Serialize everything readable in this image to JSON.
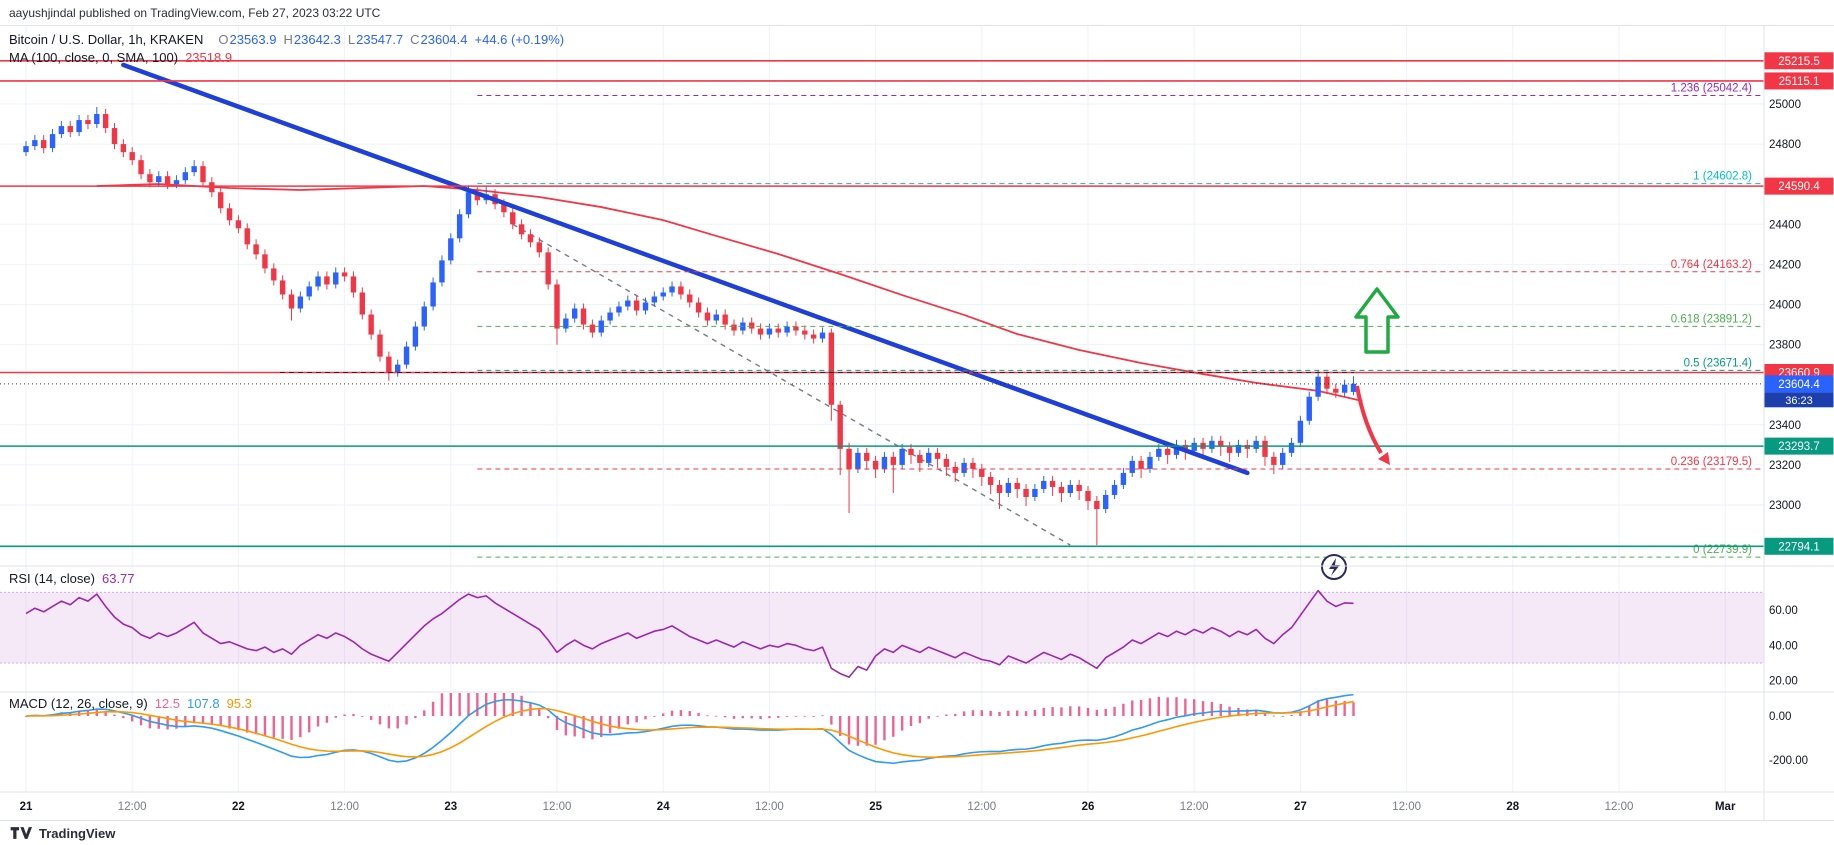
{
  "header": {
    "published_line": "aayushjindal published on TradingView.com, Feb 27, 2023 03:22 UTC"
  },
  "footer": {
    "brand": "TradingView"
  },
  "axis": {
    "currency": "USD"
  },
  "legend": {
    "symbol": "Bitcoin / U.S. Dollar, 1h, KRAKEN",
    "items": [
      [
        "O",
        "23563.9"
      ],
      [
        "H",
        "23642.3"
      ],
      [
        "L",
        "23547.7"
      ],
      [
        "C",
        "23604.4"
      ]
    ],
    "change": "+44.6 (+0.19%)",
    "ma_name": "MA (100, close, 0, SMA, 100)",
    "ma_value": "23518.9"
  },
  "colors": {
    "up": "#2962ff",
    "down": "#f23645",
    "ma": "#f23645",
    "trend": "#1e40d8",
    "guide": "#787b86",
    "rsi": "#9c27b0",
    "rsi_band": "rgba(156,39,176,0.10)",
    "macd_line": "#2d9cf4",
    "macd_signal": "#ff9800",
    "macd_hist": "#f06292",
    "level_red": "#f23645",
    "level_green": "#089981",
    "current": "#2962ff",
    "countdown_bg": "#1d3fae",
    "grid": "#eef2f9",
    "divider": "#e0e3eb",
    "axis_text": "#131722",
    "minor_text": "#787b86",
    "arrow_up": "#1fab40",
    "arrow_down": "#f23645",
    "bolt": "#2e2a5e"
  },
  "chart_data": {
    "type": "candlestick",
    "title": "Bitcoin / U.S. Dollar, 1h, KRAKEN",
    "interval": "1h",
    "x_axis_labels": [
      {
        "t": "21",
        "major": true
      },
      {
        "t": "12:00",
        "major": false
      },
      {
        "t": "22",
        "major": true
      },
      {
        "t": "12:00",
        "major": false
      },
      {
        "t": "23",
        "major": true
      },
      {
        "t": "12:00",
        "major": false
      },
      {
        "t": "24",
        "major": true
      },
      {
        "t": "12:00",
        "major": false
      },
      {
        "t": "25",
        "major": true
      },
      {
        "t": "12:00",
        "major": false
      },
      {
        "t": "26",
        "major": true
      },
      {
        "t": "12:00",
        "major": false
      },
      {
        "t": "27",
        "major": true
      },
      {
        "t": "12:00",
        "major": false
      },
      {
        "t": "28",
        "major": true
      },
      {
        "t": "12:00",
        "major": false
      },
      {
        "t": "Mar",
        "major": true
      }
    ],
    "y_ticks": [
      [
        25000,
        "25000"
      ],
      [
        24800,
        "24800"
      ],
      [
        24400,
        "24400"
      ],
      [
        24200,
        "24200"
      ],
      [
        24000,
        "24000"
      ],
      [
        23800,
        "23800"
      ],
      [
        23400,
        "23400"
      ],
      [
        23200,
        "23200"
      ],
      [
        23000,
        "23000"
      ]
    ],
    "horizontal_levels": [
      {
        "price": 25215.5,
        "label": "25215.5",
        "color": "#f23645",
        "dotted_overlay": false
      },
      {
        "price": 25115.1,
        "label": "25115.1",
        "color": "#f23645",
        "dotted_overlay": false
      },
      {
        "price": 24590.4,
        "label": "24590.4",
        "color": "#f23645",
        "dotted_overlay": false
      },
      {
        "price": 23660.9,
        "label": "23660.9",
        "color": "#f23645",
        "dotted_overlay": true
      },
      {
        "price": 23293.7,
        "label": "23293.7",
        "color": "#089981",
        "dotted_overlay": false
      },
      {
        "price": 22794.1,
        "label": "22794.1",
        "color": "#089981",
        "dotted_overlay": false
      }
    ],
    "fib_levels": [
      {
        "level": "1.236",
        "price": 25042.4,
        "label": "1.236 (25042.4)",
        "color": "#9c27b0"
      },
      {
        "level": "1",
        "price": 24602.8,
        "label": "1 (24602.8)",
        "color": "#00bcd4"
      },
      {
        "level": "0.764",
        "price": 24163.2,
        "label": "0.764 (24163.2)",
        "color": "#f23645"
      },
      {
        "level": "0.618",
        "price": 23891.2,
        "label": "0.618 (23891.2)",
        "color": "#4caf50"
      },
      {
        "level": "0.5",
        "price": 23671.4,
        "label": "0.5 (23671.4)",
        "color": "#089981"
      },
      {
        "level": "0.236",
        "price": 23179.5,
        "label": "0.236 (23179.5)",
        "color": "#f23645"
      },
      {
        "level": "0",
        "price": 22739.9,
        "label": "0 (22739.9)",
        "color": "#4caf50"
      }
    ],
    "fib_start_index": 51,
    "trendline": [
      [
        11,
        25195
      ],
      [
        138,
        23160
      ]
    ],
    "guide_dashed_line": [
      [
        55,
        24400
      ],
      [
        118,
        22800
      ]
    ],
    "ma_line_points": [
      [
        8,
        24591
      ],
      [
        15,
        24601
      ],
      [
        23,
        24581
      ],
      [
        31,
        24571
      ],
      [
        38,
        24581
      ],
      [
        45,
        24591
      ],
      [
        51,
        24571
      ],
      [
        58,
        24536
      ],
      [
        65,
        24486
      ],
      [
        72,
        24421
      ],
      [
        78,
        24342
      ],
      [
        85,
        24252
      ],
      [
        92,
        24152
      ],
      [
        99,
        24047
      ],
      [
        106,
        23948
      ],
      [
        112,
        23853
      ],
      [
        119,
        23773
      ],
      [
        126,
        23708
      ],
      [
        133,
        23653
      ],
      [
        139,
        23609
      ],
      [
        146,
        23569
      ],
      [
        151,
        23519
      ]
    ],
    "current_price": {
      "value": 23604.4,
      "label": "23604.4",
      "countdown": "36:23"
    },
    "candles": [
      [
        24760,
        24815,
        24740,
        24790
      ],
      [
        24790,
        24845,
        24770,
        24820
      ],
      [
        24820,
        24845,
        24755,
        24780
      ],
      [
        24780,
        24875,
        24760,
        24850
      ],
      [
        24850,
        24915,
        24830,
        24890
      ],
      [
        24890,
        24915,
        24835,
        24860
      ],
      [
        24860,
        24945,
        24840,
        24920
      ],
      [
        24920,
        24945,
        24875,
        24900
      ],
      [
        24900,
        24985,
        24880,
        24950
      ],
      [
        24950,
        24975,
        24855,
        24880
      ],
      [
        24880,
        24905,
        24775,
        24800
      ],
      [
        24800,
        24825,
        24735,
        24760
      ],
      [
        24760,
        24785,
        24695,
        24720
      ],
      [
        24720,
        24745,
        24625,
        24650
      ],
      [
        24650,
        24675,
        24585,
        24610
      ],
      [
        24610,
        24665,
        24590,
        24640
      ],
      [
        24640,
        24665,
        24575,
        24600
      ],
      [
        24600,
        24645,
        24580,
        24620
      ],
      [
        24620,
        24685,
        24600,
        24660
      ],
      [
        24660,
        24720,
        24640,
        24690
      ],
      [
        24690,
        24715,
        24585,
        24610
      ],
      [
        24610,
        24635,
        24535,
        24560
      ],
      [
        24560,
        24585,
        24455,
        24480
      ],
      [
        24480,
        24505,
        24395,
        24420
      ],
      [
        24420,
        24445,
        24355,
        24380
      ],
      [
        24380,
        24405,
        24275,
        24300
      ],
      [
        24300,
        24325,
        24225,
        24250
      ],
      [
        24250,
        24275,
        24155,
        24180
      ],
      [
        24180,
        24205,
        24095,
        24120
      ],
      [
        24120,
        24145,
        24025,
        24050
      ],
      [
        24050,
        24075,
        23920,
        23980
      ],
      [
        23980,
        24065,
        23960,
        24040
      ],
      [
        24040,
        24115,
        24020,
        24090
      ],
      [
        24090,
        24165,
        24070,
        24140
      ],
      [
        24140,
        24165,
        24075,
        24100
      ],
      [
        24100,
        24185,
        24080,
        24160
      ],
      [
        24160,
        24185,
        24115,
        24140
      ],
      [
        24140,
        24165,
        24035,
        24060
      ],
      [
        24060,
        24085,
        23925,
        23950
      ],
      [
        23950,
        23975,
        23825,
        23850
      ],
      [
        23850,
        23875,
        23715,
        23740
      ],
      [
        23740,
        23765,
        23620,
        23660
      ],
      [
        23660,
        23725,
        23640,
        23700
      ],
      [
        23700,
        23815,
        23680,
        23790
      ],
      [
        23790,
        23915,
        23770,
        23890
      ],
      [
        23890,
        24015,
        23870,
        23990
      ],
      [
        23990,
        24135,
        23970,
        24110
      ],
      [
        24110,
        24245,
        24090,
        24220
      ],
      [
        24220,
        24355,
        24200,
        24330
      ],
      [
        24330,
        24475,
        24310,
        24450
      ],
      [
        24450,
        24595,
        24430,
        24560
      ],
      [
        24560,
        24585,
        24495,
        24520
      ],
      [
        24520,
        24590,
        24500,
        24550
      ],
      [
        24550,
        24575,
        24475,
        24500
      ],
      [
        24500,
        24525,
        24435,
        24460
      ],
      [
        24460,
        24485,
        24375,
        24400
      ],
      [
        24400,
        24425,
        24325,
        24350
      ],
      [
        24350,
        24375,
        24285,
        24310
      ],
      [
        24310,
        24335,
        24235,
        24260
      ],
      [
        24260,
        24285,
        24075,
        24100
      ],
      [
        24100,
        24125,
        23800,
        23880
      ],
      [
        23880,
        23955,
        23860,
        23930
      ],
      [
        23930,
        24005,
        23910,
        23980
      ],
      [
        23980,
        24005,
        23875,
        23900
      ],
      [
        23900,
        23925,
        23835,
        23860
      ],
      [
        23860,
        23945,
        23840,
        23920
      ],
      [
        23920,
        23985,
        23900,
        23960
      ],
      [
        23960,
        24015,
        23940,
        23990
      ],
      [
        23990,
        24045,
        23970,
        24020
      ],
      [
        24020,
        24045,
        23945,
        23970
      ],
      [
        23970,
        24035,
        23950,
        24010
      ],
      [
        24010,
        24065,
        23990,
        24040
      ],
      [
        24040,
        24085,
        24020,
        24060
      ],
      [
        24060,
        24115,
        24040,
        24090
      ],
      [
        24090,
        24115,
        24025,
        24050
      ],
      [
        24050,
        24075,
        23985,
        24010
      ],
      [
        24010,
        24035,
        23935,
        23960
      ],
      [
        23960,
        23985,
        23895,
        23920
      ],
      [
        23920,
        23975,
        23900,
        23950
      ],
      [
        23950,
        23975,
        23875,
        23900
      ],
      [
        23900,
        23925,
        23845,
        23870
      ],
      [
        23870,
        23935,
        23850,
        23910
      ],
      [
        23910,
        23935,
        23855,
        23880
      ],
      [
        23880,
        23905,
        23825,
        23850
      ],
      [
        23850,
        23905,
        23830,
        23880
      ],
      [
        23880,
        23905,
        23835,
        23860
      ],
      [
        23860,
        23915,
        23840,
        23890
      ],
      [
        23890,
        23915,
        23845,
        23870
      ],
      [
        23870,
        23895,
        23825,
        23850
      ],
      [
        23850,
        23875,
        23805,
        23830
      ],
      [
        23830,
        23885,
        23810,
        23860
      ],
      [
        23860,
        23880,
        23420,
        23500
      ],
      [
        23500,
        23520,
        23150,
        23280
      ],
      [
        23280,
        23310,
        22960,
        23180
      ],
      [
        23180,
        23285,
        23160,
        23260
      ],
      [
        23260,
        23285,
        23175,
        23220
      ],
      [
        23220,
        23245,
        23135,
        23180
      ],
      [
        23180,
        23265,
        23160,
        23240
      ],
      [
        23240,
        23265,
        23060,
        23200
      ],
      [
        23200,
        23305,
        23180,
        23280
      ],
      [
        23280,
        23305,
        23205,
        23250
      ],
      [
        23250,
        23275,
        23165,
        23210
      ],
      [
        23210,
        23285,
        23190,
        23260
      ],
      [
        23260,
        23285,
        23185,
        23230
      ],
      [
        23230,
        23255,
        23145,
        23190
      ],
      [
        23190,
        23215,
        23115,
        23160
      ],
      [
        23160,
        23235,
        23140,
        23210
      ],
      [
        23210,
        23235,
        23135,
        23180
      ],
      [
        23180,
        23205,
        23095,
        23140
      ],
      [
        23140,
        23165,
        23055,
        23100
      ],
      [
        23100,
        23125,
        22980,
        23060
      ],
      [
        23060,
        23135,
        23040,
        23110
      ],
      [
        23110,
        23135,
        23035,
        23080
      ],
      [
        23080,
        23105,
        22995,
        23040
      ],
      [
        23040,
        23105,
        23020,
        23080
      ],
      [
        23080,
        23145,
        23060,
        23120
      ],
      [
        23120,
        23145,
        23045,
        23090
      ],
      [
        23090,
        23115,
        23015,
        23060
      ],
      [
        23060,
        23125,
        23040,
        23100
      ],
      [
        23100,
        23125,
        23025,
        23070
      ],
      [
        23070,
        23095,
        22975,
        23020
      ],
      [
        23020,
        23045,
        22800,
        22980
      ],
      [
        22980,
        23075,
        22960,
        23050
      ],
      [
        23050,
        23125,
        23030,
        23100
      ],
      [
        23100,
        23185,
        23080,
        23160
      ],
      [
        23160,
        23245,
        23140,
        23220
      ],
      [
        23220,
        23245,
        23135,
        23180
      ],
      [
        23180,
        23265,
        23160,
        23240
      ],
      [
        23240,
        23305,
        23220,
        23280
      ],
      [
        23280,
        23305,
        23205,
        23250
      ],
      [
        23250,
        23325,
        23230,
        23300
      ],
      [
        23300,
        23325,
        23225,
        23270
      ],
      [
        23270,
        23335,
        23250,
        23310
      ],
      [
        23310,
        23335,
        23235,
        23280
      ],
      [
        23280,
        23345,
        23260,
        23320
      ],
      [
        23320,
        23345,
        23245,
        23290
      ],
      [
        23290,
        23315,
        23215,
        23260
      ],
      [
        23260,
        23325,
        23240,
        23300
      ],
      [
        23300,
        23325,
        23235,
        23280
      ],
      [
        23280,
        23345,
        23260,
        23320
      ],
      [
        23320,
        23345,
        23195,
        23240
      ],
      [
        23240,
        23265,
        23155,
        23200
      ],
      [
        23200,
        23285,
        23180,
        23260
      ],
      [
        23260,
        23335,
        23240,
        23310
      ],
      [
        23310,
        23445,
        23290,
        23420
      ],
      [
        23420,
        23565,
        23400,
        23540
      ],
      [
        23540,
        23672,
        23520,
        23640
      ],
      [
        23640,
        23665,
        23555,
        23580
      ],
      [
        23580,
        23605,
        23535,
        23560
      ],
      [
        23560,
        23625,
        23540,
        23600
      ],
      [
        23563.9,
        23642.3,
        23547.7,
        23604.4
      ]
    ],
    "rsi": {
      "name": "RSI (14, close)",
      "value": "63.77",
      "band": [
        30,
        70
      ],
      "ticks": [
        [
          60,
          "60.00"
        ],
        [
          40,
          "40.00"
        ],
        [
          20,
          "20.00"
        ]
      ],
      "series": [
        58,
        61,
        59,
        62,
        65,
        63,
        67,
        65,
        69,
        62,
        56,
        52,
        50,
        46,
        44,
        47,
        45,
        47,
        50,
        53,
        47,
        44,
        41,
        42,
        40,
        38,
        37,
        39,
        36,
        38,
        35,
        40,
        43,
        46,
        44,
        47,
        45,
        42,
        38,
        35,
        33,
        31,
        36,
        41,
        46,
        51,
        55,
        58,
        62,
        66,
        69,
        67,
        68,
        64,
        61,
        58,
        55,
        52,
        49,
        43,
        36,
        40,
        43,
        40,
        38,
        41,
        43,
        45,
        47,
        44,
        46,
        48,
        49,
        51,
        48,
        45,
        43,
        41,
        43,
        41,
        39,
        42,
        40,
        38,
        40,
        39,
        41,
        40,
        38,
        37,
        39,
        27,
        24,
        22,
        28,
        26,
        34,
        38,
        36,
        40,
        38,
        36,
        39,
        37,
        35,
        33,
        36,
        34,
        32,
        31,
        29,
        34,
        32,
        30,
        33,
        36,
        34,
        32,
        35,
        33,
        30,
        27,
        33,
        36,
        39,
        43,
        41,
        44,
        47,
        45,
        48,
        46,
        49,
        47,
        50,
        48,
        45,
        48,
        46,
        49,
        44,
        41,
        46,
        50,
        57,
        64,
        71,
        65,
        62,
        64,
        63.77
      ]
    },
    "macd": {
      "name": "MACD (12, 26, close, 9)",
      "values": [
        "12.5",
        "107.8",
        "95.3"
      ],
      "fast": 12,
      "slow": 26,
      "signal": 9,
      "ticks": [
        [
          0,
          "0.00"
        ],
        [
          -200,
          "-200.00"
        ]
      ]
    }
  }
}
